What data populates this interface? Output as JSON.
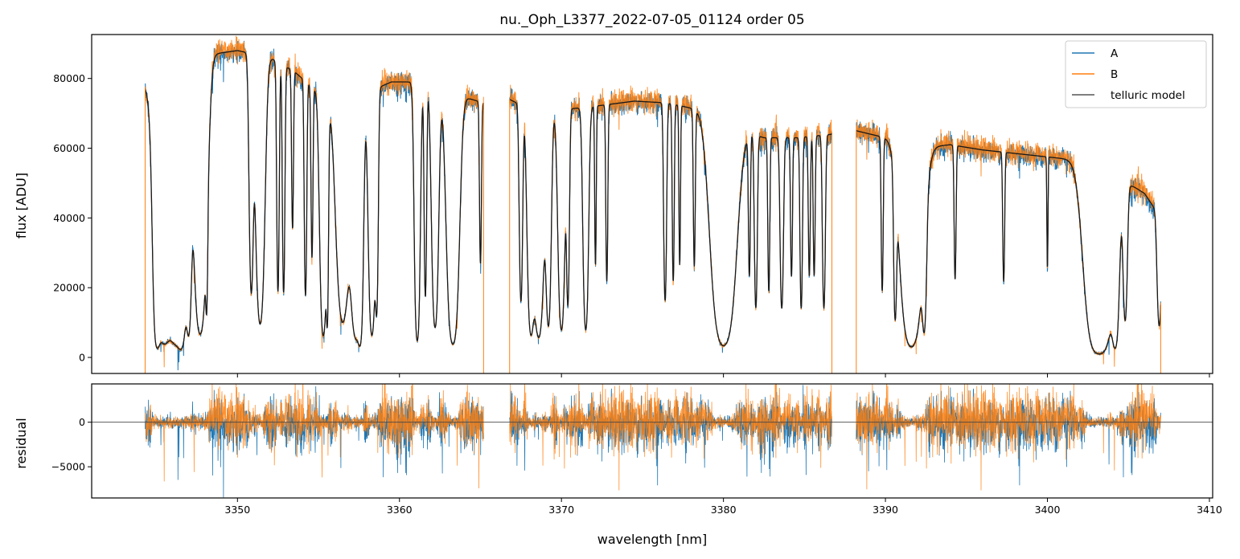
{
  "chart_data": [
    {
      "type": "line",
      "panel": "main",
      "title": "nu._Oph_L3377_2022-07-05_01124  order 05",
      "xlabel": "",
      "ylabel": "flux [ADU]",
      "xlim": [
        3341,
        3410.2
      ],
      "ylim": [
        -4600,
        92600
      ],
      "x_ticks": [
        3350,
        3360,
        3370,
        3380,
        3390,
        3400,
        3410
      ],
      "y_ticks": [
        0,
        20000,
        40000,
        60000,
        80000
      ],
      "y_tick_labels": [
        "0",
        "20000",
        "40000",
        "60000",
        "80000"
      ],
      "legend_position": "top-right",
      "segments": [
        [
          3344.3,
          3365.2
        ],
        [
          3366.8,
          3386.7
        ],
        [
          3388.2,
          3407.0
        ]
      ],
      "continuum_x": [
        3344.3,
        3345.5,
        3347.0,
        3348.5,
        3350.0,
        3352.0,
        3353.5,
        3355.0,
        3357.0,
        3359.5,
        3361.0,
        3363.0,
        3365.2,
        3366.8,
        3368.5,
        3370.0,
        3372.0,
        3374.5,
        3376.5,
        3378.5,
        3380.5,
        3382.5,
        3384.5,
        3386.7,
        3388.2,
        3390.0,
        3392.0,
        3394.0,
        3396.0,
        3398.0,
        3400.0,
        3402.0,
        3404.0,
        3406.0,
        3407.0
      ],
      "continuum_y": [
        78000,
        72000,
        76000,
        87000,
        88000,
        86000,
        82000,
        76000,
        74000,
        79000,
        79000,
        76000,
        73000,
        74000,
        70000,
        71000,
        72000,
        73500,
        73000,
        71000,
        66000,
        63000,
        63000,
        64000,
        65000,
        63000,
        60000,
        61000,
        59500,
        58500,
        57500,
        56500,
        53000,
        47000,
        40000
      ],
      "absorption_lines": [
        [
          3345.0,
          2.0,
          0.15
        ],
        [
          3345.45,
          2.8,
          0.35
        ],
        [
          3346.2,
          2.5,
          0.3
        ],
        [
          3346.6,
          2.2,
          0.2
        ],
        [
          3347.0,
          2.0,
          0.12
        ],
        [
          3347.7,
          2.5,
          0.28
        ],
        [
          3348.1,
          1.0,
          0.05
        ],
        [
          3350.85,
          1.5,
          0.1
        ],
        [
          3351.4,
          2.2,
          0.2
        ],
        [
          3352.5,
          1.5,
          0.06
        ],
        [
          3352.85,
          1.5,
          0.06
        ],
        [
          3353.4,
          0.8,
          0.05
        ],
        [
          3354.2,
          1.5,
          0.06
        ],
        [
          3354.6,
          1.0,
          0.05
        ],
        [
          3355.3,
          2.5,
          0.15
        ],
        [
          3355.55,
          1.5,
          0.05
        ],
        [
          3356.5,
          2.0,
          0.3
        ],
        [
          3357.3,
          2.5,
          0.22
        ],
        [
          3357.6,
          2.0,
          0.12
        ],
        [
          3358.3,
          2.5,
          0.15
        ],
        [
          3358.6,
          1.5,
          0.07
        ],
        [
          3361.1,
          2.8,
          0.12
        ],
        [
          3361.6,
          1.5,
          0.06
        ],
        [
          3362.2,
          2.2,
          0.15
        ],
        [
          3363.3,
          3.0,
          0.25
        ],
        [
          3365.0,
          1.0,
          0.05
        ],
        [
          3367.5,
          1.5,
          0.08
        ],
        [
          3368.1,
          2.2,
          0.15
        ],
        [
          3368.6,
          2.5,
          0.22
        ],
        [
          3369.2,
          2.0,
          0.12
        ],
        [
          3370.0,
          2.2,
          0.15
        ],
        [
          3370.4,
          1.5,
          0.07
        ],
        [
          3371.5,
          2.2,
          0.12
        ],
        [
          3372.1,
          1.0,
          0.04
        ],
        [
          3372.8,
          1.2,
          0.05
        ],
        [
          3376.4,
          1.5,
          0.07
        ],
        [
          3376.9,
          1.2,
          0.05
        ],
        [
          3377.3,
          1.0,
          0.04
        ],
        [
          3378.2,
          1.0,
          0.05
        ],
        [
          3380.0,
          3.0,
          0.5
        ],
        [
          3381.6,
          1.0,
          0.05
        ],
        [
          3382.0,
          1.5,
          0.07
        ],
        [
          3382.8,
          1.2,
          0.05
        ],
        [
          3383.6,
          1.5,
          0.08
        ],
        [
          3384.2,
          1.0,
          0.05
        ],
        [
          3384.8,
          1.5,
          0.06
        ],
        [
          3385.3,
          1.0,
          0.05
        ],
        [
          3385.6,
          1.0,
          0.05
        ],
        [
          3386.2,
          1.5,
          0.07
        ],
        [
          3389.8,
          1.2,
          0.05
        ],
        [
          3390.6,
          1.5,
          0.07
        ],
        [
          3391.6,
          3.0,
          0.45
        ],
        [
          3392.4,
          1.5,
          0.1
        ],
        [
          3394.3,
          1.0,
          0.05
        ],
        [
          3397.3,
          1.0,
          0.05
        ],
        [
          3400.0,
          0.8,
          0.03
        ],
        [
          3403.2,
          4.0,
          0.55
        ],
        [
          3404.2,
          2.2,
          0.15
        ],
        [
          3404.8,
          1.5,
          0.1
        ],
        [
          3406.9,
          1.5,
          0.1
        ]
      ],
      "series": [
        {
          "name": "A",
          "color": "#1f77b4"
        },
        {
          "name": "B",
          "color": "#ff7f0e"
        },
        {
          "name": "telluric model",
          "color": "#555555"
        }
      ]
    },
    {
      "type": "line",
      "panel": "residual",
      "xlabel": "wavelength [nm]",
      "ylabel": "residual",
      "xlim": [
        3341,
        3410.2
      ],
      "ylim": [
        -8500,
        4300
      ],
      "x_ticks": [
        3350,
        3360,
        3370,
        3380,
        3390,
        3400,
        3410
      ],
      "x_tick_labels": [
        "3350",
        "3360",
        "3370",
        "3380",
        "3390",
        "3400",
        "3410"
      ],
      "y_ticks": [
        0,
        -5000
      ],
      "y_tick_labels": [
        "0",
        "−5000"
      ],
      "zero_line": true,
      "series": [
        {
          "name": "A",
          "color": "#1f77b4"
        },
        {
          "name": "B",
          "color": "#ff7f0e"
        }
      ]
    }
  ]
}
